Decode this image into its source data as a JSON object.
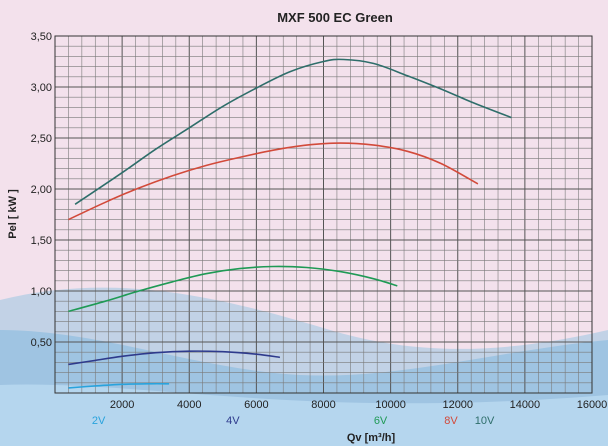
{
  "chart_data": {
    "type": "line",
    "title": "MXF 500 EC Green",
    "xlabel": "Qv [m³/h]",
    "ylabel": "Pel [ kW ]",
    "xlim": [
      0,
      16000
    ],
    "ylim": [
      0,
      3.5
    ],
    "grid": true,
    "x_ticks": [
      2000,
      4000,
      6000,
      8000,
      10000,
      12000,
      14000,
      16000
    ],
    "x_tick_labels": [
      "2000",
      "4000",
      "6000",
      "8000",
      "10000",
      "12000",
      "14000",
      "16000"
    ],
    "y_ticks": [
      0.5,
      1.0,
      1.5,
      2.0,
      2.5,
      3.0,
      3.5
    ],
    "y_tick_labels": [
      "0,50",
      "1,00",
      "1,50",
      "2,00",
      "2,50",
      "3,00",
      "3,50"
    ],
    "series": [
      {
        "name": "2V",
        "color": "#29a3dd",
        "label_x": 1300,
        "points": [
          [
            400,
            0.05
          ],
          [
            1200,
            0.07
          ],
          [
            2000,
            0.085
          ],
          [
            2800,
            0.09
          ],
          [
            3400,
            0.09
          ]
        ]
      },
      {
        "name": "4V",
        "color": "#2e3a8c",
        "label_x": 5300,
        "points": [
          [
            400,
            0.28
          ],
          [
            1200,
            0.32
          ],
          [
            2000,
            0.36
          ],
          [
            3000,
            0.395
          ],
          [
            4000,
            0.41
          ],
          [
            5000,
            0.405
          ],
          [
            6000,
            0.38
          ],
          [
            6700,
            0.35
          ]
        ]
      },
      {
        "name": "6V",
        "color": "#1f9a55",
        "label_x": 9700,
        "points": [
          [
            400,
            0.8
          ],
          [
            1500,
            0.9
          ],
          [
            2500,
            1.0
          ],
          [
            3500,
            1.09
          ],
          [
            4500,
            1.17
          ],
          [
            5500,
            1.22
          ],
          [
            6500,
            1.24
          ],
          [
            7500,
            1.23
          ],
          [
            8500,
            1.19
          ],
          [
            9500,
            1.12
          ],
          [
            10200,
            1.05
          ]
        ]
      },
      {
        "name": "8V",
        "color": "#d24a3a",
        "label_x": 11800,
        "points": [
          [
            400,
            1.7
          ],
          [
            1500,
            1.87
          ],
          [
            2500,
            2.01
          ],
          [
            3500,
            2.13
          ],
          [
            4500,
            2.23
          ],
          [
            5500,
            2.31
          ],
          [
            6500,
            2.38
          ],
          [
            7500,
            2.43
          ],
          [
            8500,
            2.45
          ],
          [
            9500,
            2.43
          ],
          [
            10500,
            2.37
          ],
          [
            11500,
            2.25
          ],
          [
            12600,
            2.05
          ]
        ]
      },
      {
        "name": "10V",
        "color": "#2e6e6a",
        "label_x": 12800,
        "points": [
          [
            600,
            1.85
          ],
          [
            2000,
            2.16
          ],
          [
            3000,
            2.39
          ],
          [
            4000,
            2.6
          ],
          [
            5000,
            2.81
          ],
          [
            6000,
            2.99
          ],
          [
            7000,
            3.15
          ],
          [
            8000,
            3.25
          ],
          [
            8600,
            3.27
          ],
          [
            9500,
            3.23
          ],
          [
            10500,
            3.11
          ],
          [
            11500,
            2.98
          ],
          [
            12500,
            2.84
          ],
          [
            13600,
            2.7
          ]
        ]
      }
    ]
  }
}
